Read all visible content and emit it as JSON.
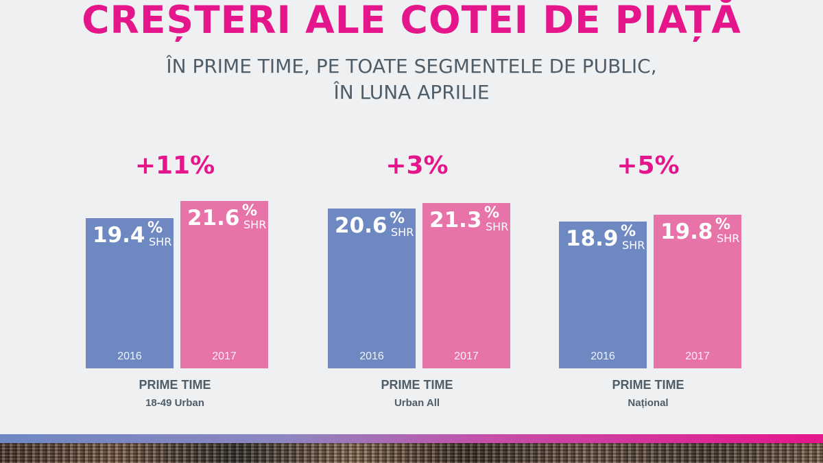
{
  "title": "CREȘTERI ALE COTEI DE PIAȚĂ",
  "subtitle_line1": "ÎN PRIME TIME, PE TOATE SEGMENTELE DE PUBLIC,",
  "subtitle_line2": "ÎN LUNA APRILIE",
  "colors": {
    "accent": "#e5168b",
    "bar_2016": "#6e88c2",
    "bar_2017": "#e873a8",
    "text": "#4f5d69"
  },
  "chart_data": {
    "type": "bar",
    "unit_pct": "%",
    "unit_label": "SHR",
    "series_names": [
      "2016",
      "2017"
    ],
    "groups": [
      {
        "change": "+11%",
        "label": "PRIME TIME",
        "sublabel": "18-49 Urban",
        "bars": [
          {
            "year": "2016",
            "value": 19.4,
            "value_label": "19.4"
          },
          {
            "year": "2017",
            "value": 21.6,
            "value_label": "21.6"
          }
        ]
      },
      {
        "change": "+3%",
        "label": "PRIME TIME",
        "sublabel": "Urban All",
        "bars": [
          {
            "year": "2016",
            "value": 20.6,
            "value_label": "20.6"
          },
          {
            "year": "2017",
            "value": 21.3,
            "value_label": "21.3"
          }
        ]
      },
      {
        "change": "+5%",
        "label": "PRIME TIME",
        "sublabel": "Național",
        "bars": [
          {
            "year": "2016",
            "value": 18.9,
            "value_label": "18.9"
          },
          {
            "year": "2017",
            "value": 19.8,
            "value_label": "19.8"
          }
        ]
      }
    ]
  }
}
